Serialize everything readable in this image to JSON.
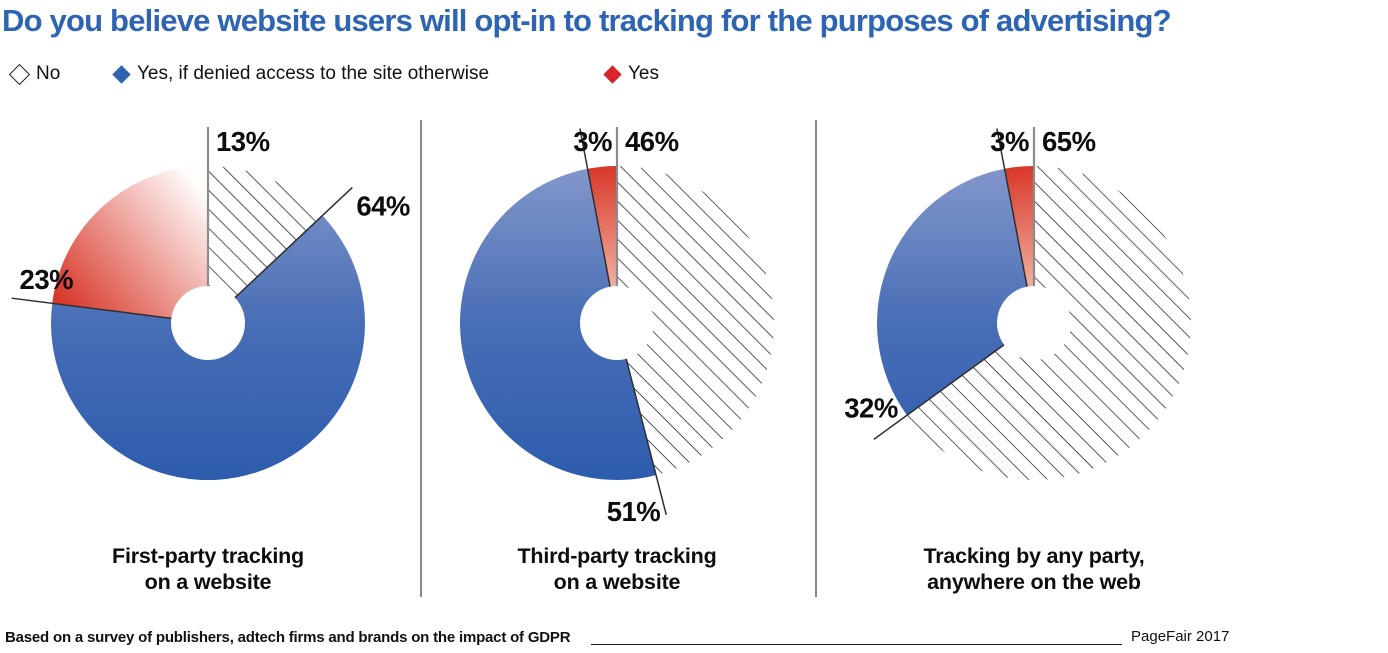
{
  "title": "Do you believe website users will opt-in to tracking for the purposes of advertising?",
  "legend": {
    "items": [
      {
        "label": "No",
        "swatch": "outline"
      },
      {
        "label": "Yes, if denied access to the site otherwise",
        "swatch": "blue"
      },
      {
        "label": "Yes",
        "swatch": "red"
      }
    ]
  },
  "chart_data": [
    {
      "type": "pie",
      "subtype": "donut",
      "caption": [
        "First-party tracking",
        "on a website"
      ],
      "slices": [
        {
          "label": "No",
          "value": 13,
          "display": "13%",
          "style": "hatch"
        },
        {
          "label": "Yes, if denied access to the site otherwise",
          "value": 64,
          "display": "64%",
          "style": "blue"
        },
        {
          "label": "Yes",
          "value": 23,
          "display": "23%",
          "style": "red"
        }
      ]
    },
    {
      "type": "pie",
      "subtype": "donut",
      "caption": [
        "Third-party tracking",
        "on a website"
      ],
      "slices": [
        {
          "label": "No",
          "value": 46,
          "display": "46%",
          "style": "hatch"
        },
        {
          "label": "Yes, if denied access to the site otherwise",
          "value": 51,
          "display": "51%",
          "style": "blue"
        },
        {
          "label": "Yes",
          "value": 3,
          "display": "3%",
          "style": "red"
        }
      ]
    },
    {
      "type": "pie",
      "subtype": "donut",
      "caption": [
        "Tracking by any party,",
        "anywhere on the web"
      ],
      "slices": [
        {
          "label": "No",
          "value": 65,
          "display": "65%",
          "style": "hatch"
        },
        {
          "label": "Yes, if denied access to the site otherwise",
          "value": 32,
          "display": "32%",
          "style": "blue"
        },
        {
          "label": "Yes",
          "value": 3,
          "display": "3%",
          "style": "red"
        }
      ]
    }
  ],
  "footer": {
    "source": "Based on a survey of publishers, adtech firms and brands on the impact of GDPR",
    "credit": "PageFair 2017"
  },
  "colors": {
    "title_blue": "#2d64b4",
    "legend_blue": "#2d63b0",
    "legend_red": "#d8232b",
    "blue_light": "#8397cb",
    "blue_mid": "#486eb6",
    "blue_dark": "#2d5cad",
    "red_strong": "#d8382a",
    "red_pale": "#f6c4b3",
    "red_fade_white": "#fffdfc",
    "hatch_line": "#1c1c1c",
    "label_line": "#2e2e2e",
    "vertical_line": "#8c8c8c",
    "divider": "#3c3c3c",
    "label_text": "#0d0d0d"
  }
}
